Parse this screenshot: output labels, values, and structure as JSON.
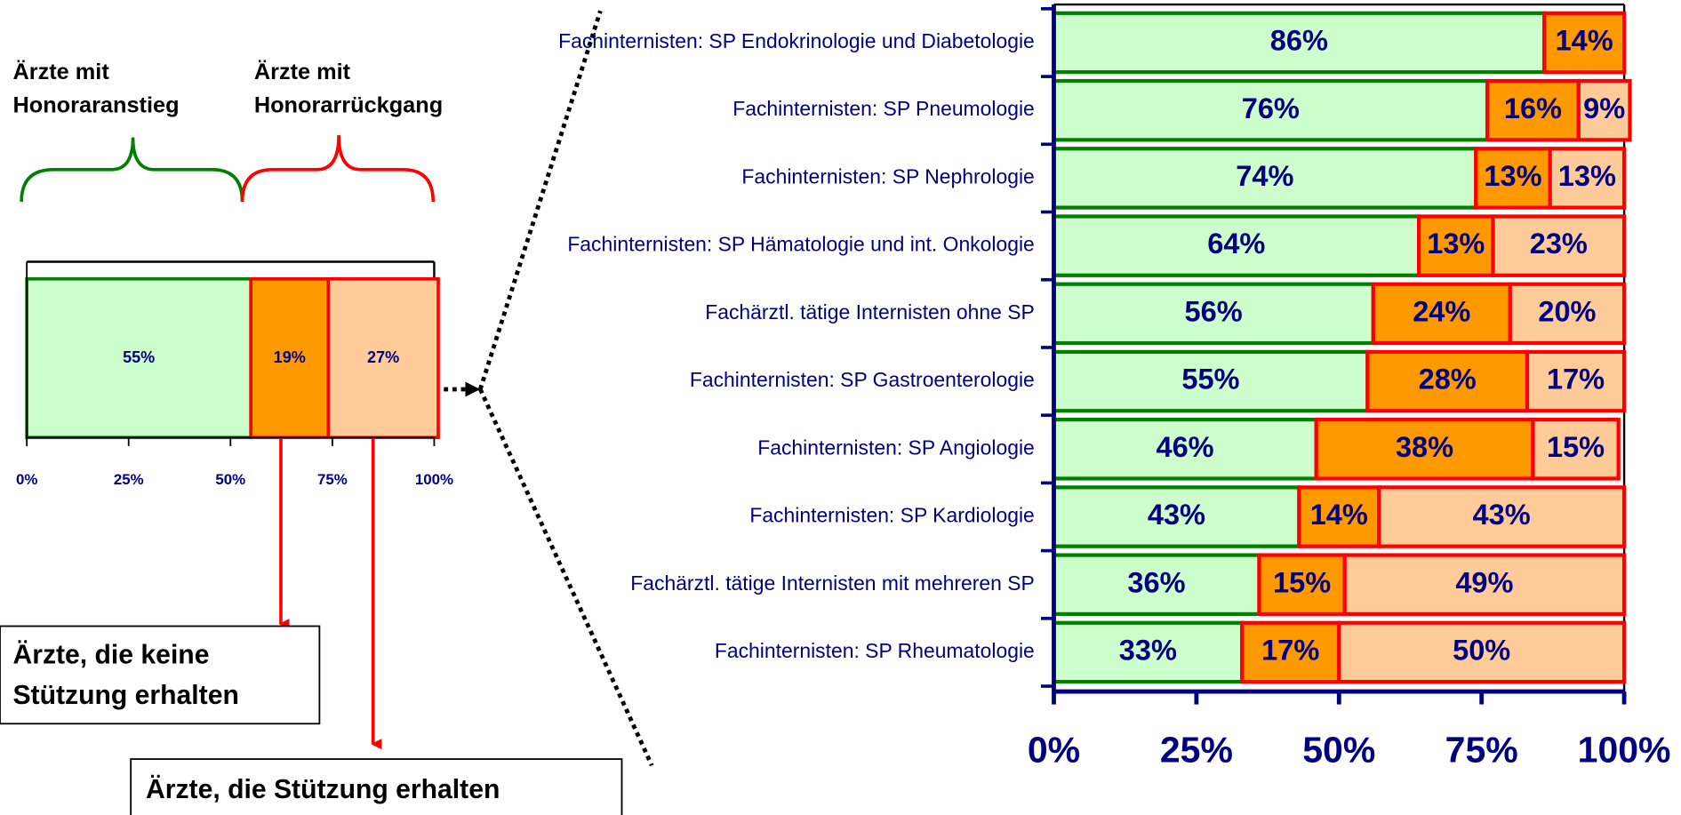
{
  "chart_data": [
    {
      "type": "stacked_bar",
      "orientation": "horizontal",
      "categories": [
        null
      ],
      "series": [
        {
          "color": "#ccffcc",
          "edge": "#008000",
          "values": [
            55
          ],
          "value_labels": [
            "55%"
          ]
        },
        {
          "color": "#ff9900",
          "edge": "#ff0000",
          "values": [
            19
          ],
          "value_labels": [
            "19%"
          ]
        },
        {
          "color": "#ffcc99",
          "edge": "#ff0000",
          "values": [
            27
          ],
          "value_labels": [
            "27%"
          ]
        }
      ],
      "xlim": [
        0,
        100
      ],
      "xticks": [
        {
          "value": 0,
          "label": "0%"
        },
        {
          "value": 25,
          "label": "25%"
        },
        {
          "value": 50,
          "label": "50%"
        },
        {
          "value": 75,
          "label": "75%"
        },
        {
          "value": 100,
          "label": "100%"
        }
      ],
      "annotations": [
        {
          "lines": [
            "Ärzte mit",
            "Honoraranstieg"
          ]
        },
        {
          "lines": [
            "Ärzte mit",
            "Honorarrückgang"
          ]
        },
        {
          "lines": [
            "Ärzte, die keine",
            "Stützung erhalten"
          ]
        },
        {
          "lines": [
            "Ärzte, die Stützung erhalten"
          ]
        }
      ]
    },
    {
      "type": "stacked_bar",
      "orientation": "horizontal",
      "categories": [
        "Fachinternisten: SP Endokrinologie und Diabetologie",
        "Fachinternisten: SP Pneumologie",
        "Fachinternisten: SP Nephrologie",
        "Fachinternisten: SP Hämatologie und int. Onkologie",
        "Fachärztl. tätige Internisten ohne SP",
        "Fachinternisten: SP Gastroenterologie",
        "Fachinternisten: SP Angiologie",
        "Fachinternisten: SP Kardiologie",
        "Fachärztl. tätige Internisten mit mehreren SP",
        "Fachinternisten: SP Rheumatologie"
      ],
      "series": [
        {
          "color": "#ccffcc",
          "edge": "#008000",
          "values": [
            86,
            76,
            74,
            64,
            56,
            55,
            46,
            43,
            36,
            33
          ],
          "value_labels": [
            "86%",
            "76%",
            "74%",
            "64%",
            "56%",
            "55%",
            "46%",
            "43%",
            "36%",
            "33%"
          ]
        },
        {
          "color": "#ff9900",
          "edge": "#ff0000",
          "values": [
            14,
            16,
            13,
            13,
            24,
            28,
            38,
            14,
            15,
            17
          ],
          "value_labels": [
            "14%",
            "16%",
            "13%",
            "13%",
            "24%",
            "28%",
            "38%",
            "14%",
            "15%",
            "17%"
          ]
        },
        {
          "color": "#ffcc99",
          "edge": "#ff0000",
          "values": [
            0,
            9,
            13,
            23,
            20,
            17,
            15,
            43,
            49,
            50
          ],
          "value_labels": [
            null,
            "9%",
            "13%",
            "23%",
            "20%",
            "17%",
            "15%",
            "43%",
            "49%",
            "50%"
          ]
        }
      ],
      "xlim": [
        0,
        100
      ],
      "xticks": [
        {
          "value": 0,
          "label": "0%"
        },
        {
          "value": 25,
          "label": "25%"
        },
        {
          "value": 50,
          "label": "50%"
        },
        {
          "value": 75,
          "label": "75%"
        },
        {
          "value": 100,
          "label": "100%"
        }
      ]
    }
  ]
}
